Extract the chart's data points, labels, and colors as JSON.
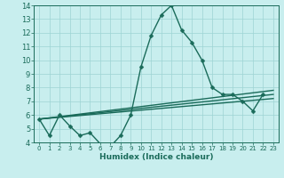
{
  "xlabel": "Humidex (Indice chaleur)",
  "background_color": "#c8eeee",
  "grid_color": "#9dd4d4",
  "line_color": "#1a6b5a",
  "xlim": [
    -0.5,
    23.5
  ],
  "ylim": [
    4,
    14
  ],
  "xticks": [
    0,
    1,
    2,
    3,
    4,
    5,
    6,
    7,
    8,
    9,
    10,
    11,
    12,
    13,
    14,
    15,
    16,
    17,
    18,
    19,
    20,
    21,
    22,
    23
  ],
  "yticks": [
    4,
    5,
    6,
    7,
    8,
    9,
    10,
    11,
    12,
    13,
    14
  ],
  "main_series": [
    5.7,
    4.5,
    6.0,
    5.2,
    4.5,
    4.7,
    3.9,
    3.7,
    4.5,
    6.0,
    9.5,
    11.8,
    13.3,
    14.0,
    12.2,
    11.3,
    10.0,
    8.0,
    7.5,
    7.5,
    7.0,
    6.3,
    7.5,
    null
  ],
  "trend_lines": [
    {
      "x": [
        0,
        23
      ],
      "y": [
        5.7,
        7.8
      ]
    },
    {
      "x": [
        0,
        23
      ],
      "y": [
        5.7,
        7.5
      ]
    },
    {
      "x": [
        0,
        23
      ],
      "y": [
        5.7,
        7.2
      ]
    }
  ],
  "xlabel_fontsize": 6.5,
  "tick_fontsize": 6,
  "linewidth": 1.0,
  "markersize": 2.5
}
